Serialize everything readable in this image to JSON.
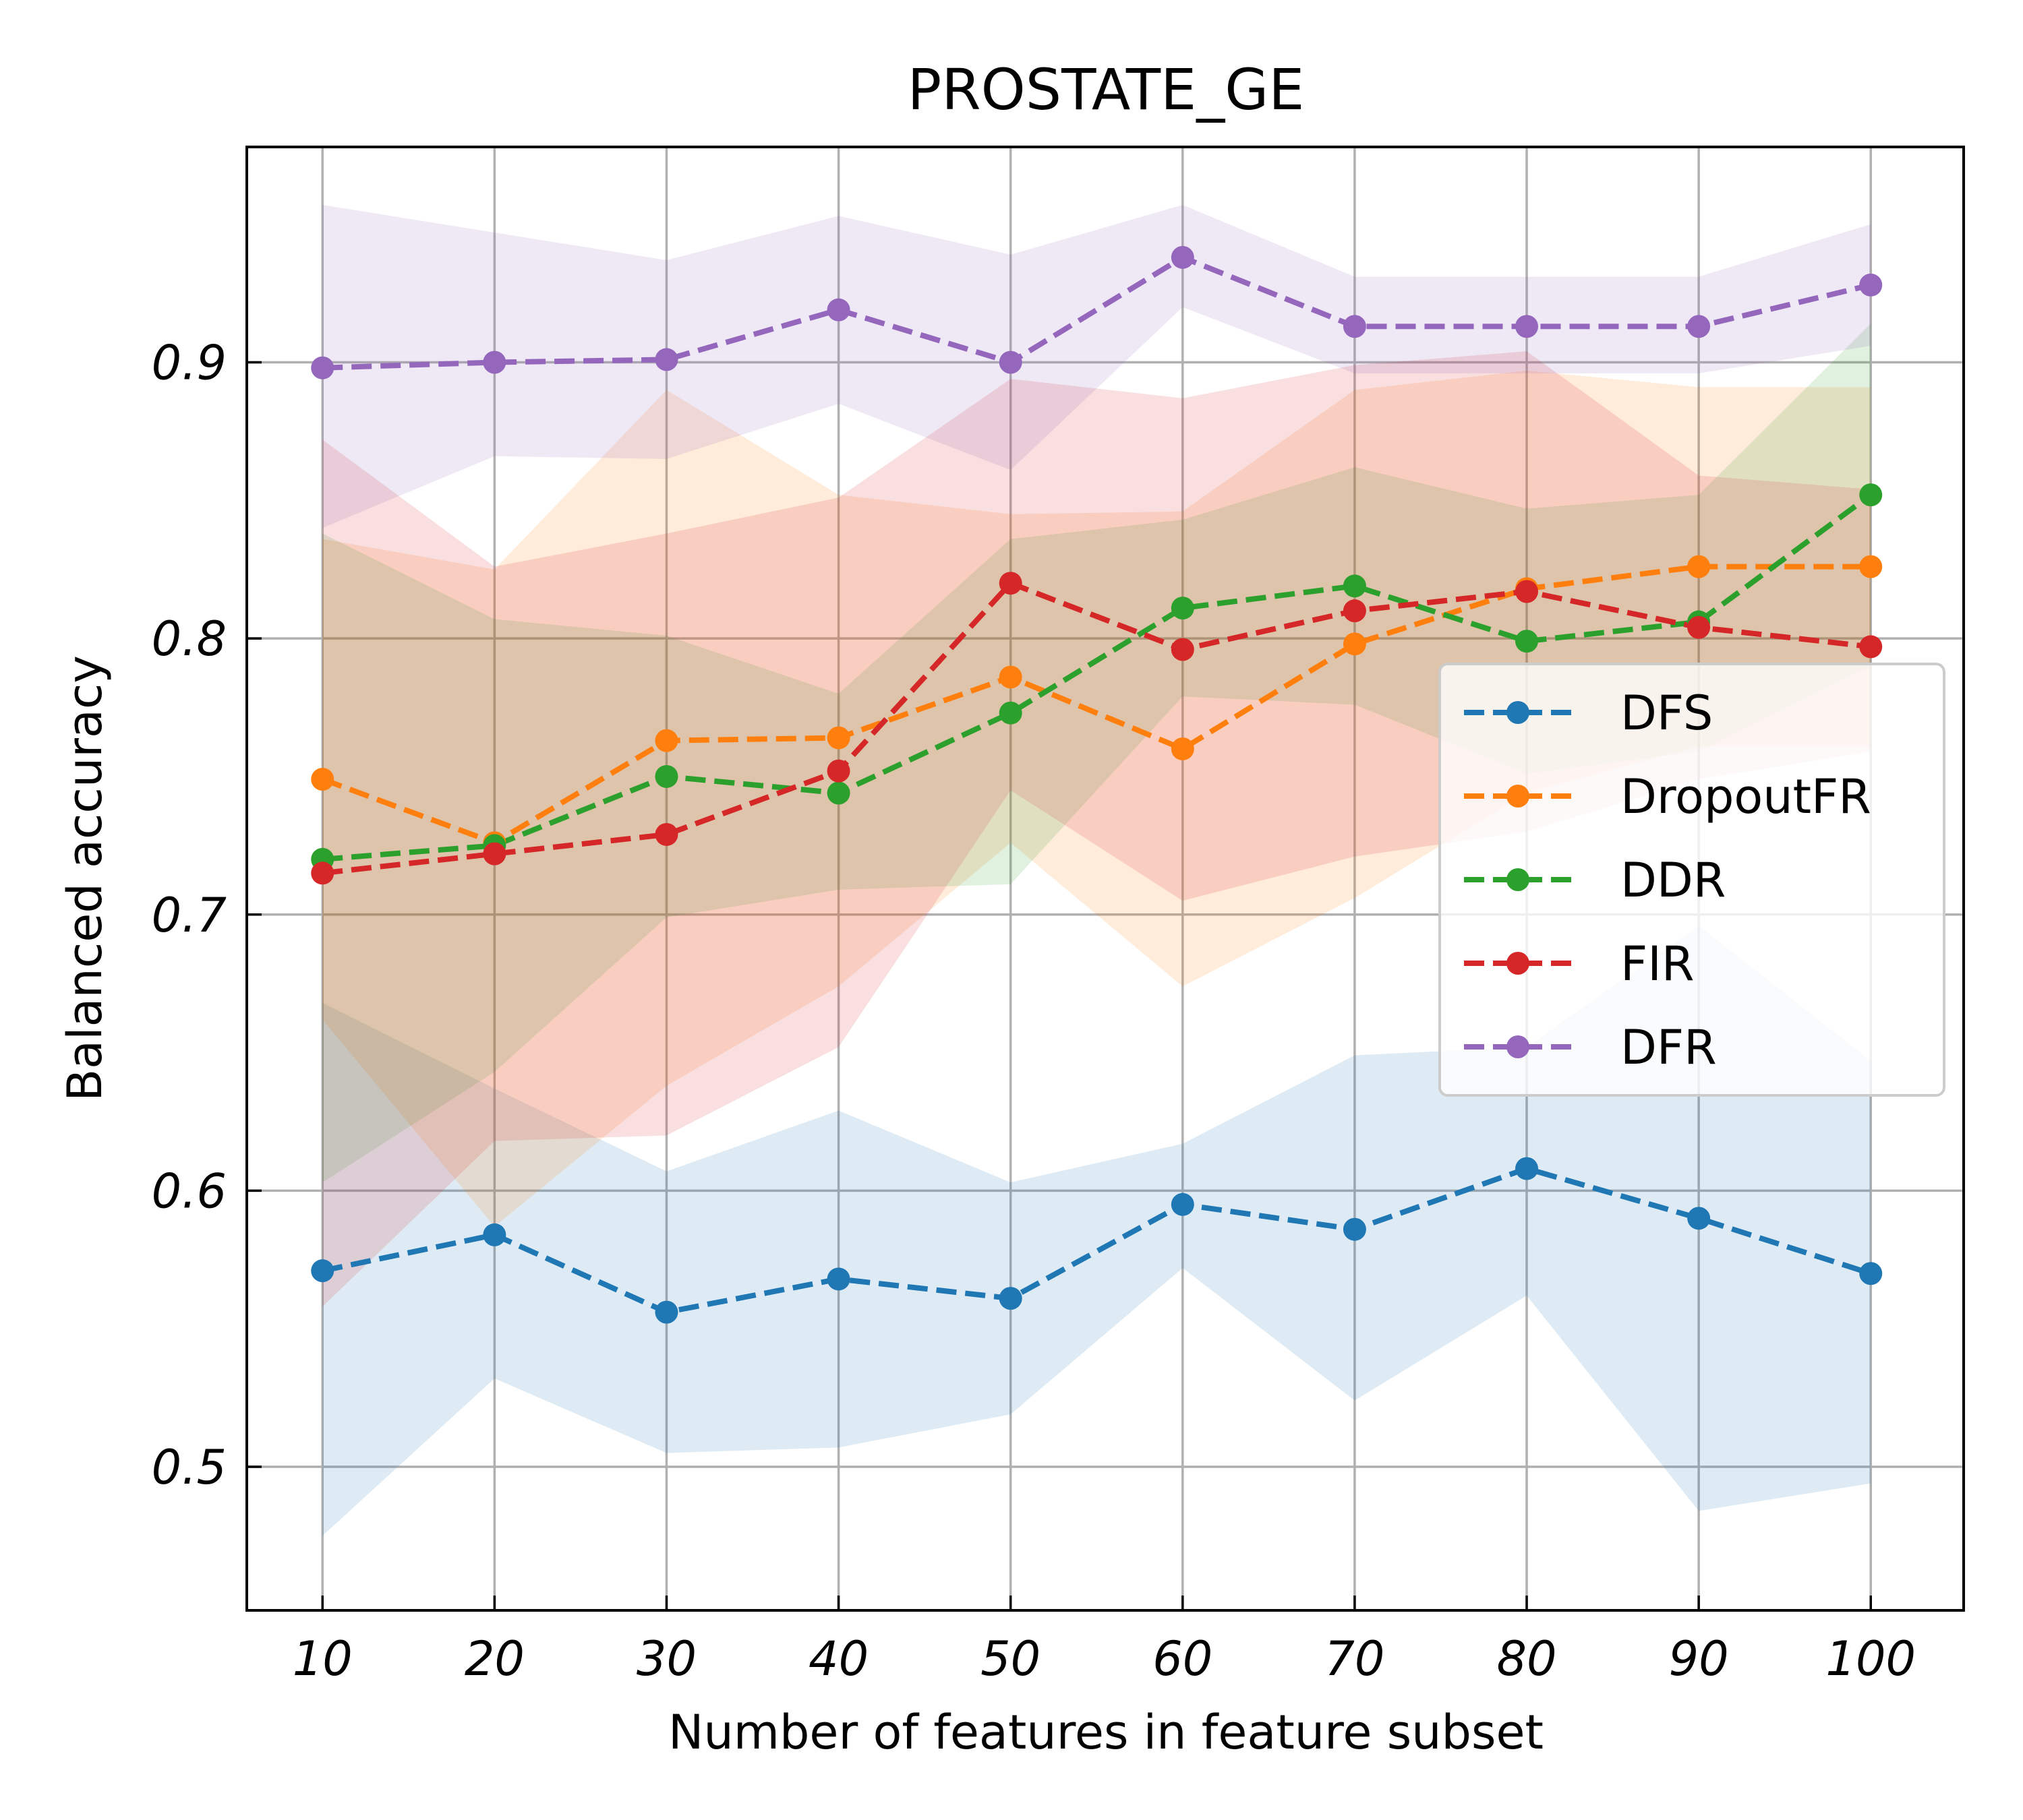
{
  "chart_data": {
    "type": "line",
    "title": "PROSTATE_GE",
    "xlabel": "Number of features in feature subset",
    "ylabel": "Balanced accuracy",
    "x": [
      10,
      20,
      30,
      40,
      50,
      60,
      70,
      80,
      90,
      100
    ],
    "x_ticks": [
      "10",
      "20",
      "30",
      "40",
      "50",
      "60",
      "70",
      "80",
      "90",
      "100"
    ],
    "y_ticks": [
      "0.5",
      "0.6",
      "0.7",
      "0.8",
      "0.9"
    ],
    "y_tick_values": [
      0.5,
      0.6,
      0.7,
      0.8,
      0.9
    ],
    "xlim": [
      5.6,
      105.4
    ],
    "ylim": [
      0.448,
      0.978
    ],
    "grid": true,
    "legend_position": "center-right",
    "series": [
      {
        "name": "DFS",
        "color": "#1f77b4",
        "values": [
          0.571,
          0.584,
          0.556,
          0.568,
          0.561,
          0.595,
          0.586,
          0.608,
          0.59,
          0.57
        ],
        "lower": [
          0.475,
          0.532,
          0.505,
          0.507,
          0.519,
          0.572,
          0.524,
          0.562,
          0.484,
          0.494
        ],
        "upper": [
          0.668,
          0.637,
          0.607,
          0.629,
          0.603,
          0.617,
          0.649,
          0.652,
          0.696,
          0.647
        ]
      },
      {
        "name": "DropoutFR",
        "color": "#ff7f0e",
        "values": [
          0.749,
          0.726,
          0.763,
          0.764,
          0.786,
          0.76,
          0.798,
          0.818,
          0.826,
          0.826
        ],
        "lower": [
          0.662,
          0.587,
          0.638,
          0.674,
          0.726,
          0.674,
          0.706,
          0.744,
          0.761,
          0.761
        ],
        "upper": [
          0.836,
          0.825,
          0.89,
          0.852,
          0.845,
          0.846,
          0.89,
          0.897,
          0.891,
          0.891
        ]
      },
      {
        "name": "DDR",
        "color": "#2ca02c",
        "values": [
          0.72,
          0.725,
          0.75,
          0.744,
          0.773,
          0.811,
          0.819,
          0.799,
          0.806,
          0.852
        ],
        "lower": [
          0.603,
          0.643,
          0.699,
          0.709,
          0.711,
          0.779,
          0.776,
          0.751,
          0.759,
          0.79
        ],
        "upper": [
          0.838,
          0.807,
          0.801,
          0.78,
          0.836,
          0.843,
          0.862,
          0.847,
          0.852,
          0.914
        ]
      },
      {
        "name": "FIR",
        "color": "#d62728",
        "values": [
          0.715,
          0.722,
          0.729,
          0.752,
          0.82,
          0.796,
          0.81,
          0.817,
          0.804,
          0.797
        ],
        "lower": [
          0.558,
          0.618,
          0.62,
          0.652,
          0.745,
          0.705,
          0.721,
          0.73,
          0.749,
          0.759
        ],
        "upper": [
          0.872,
          0.826,
          0.838,
          0.851,
          0.894,
          0.887,
          0.899,
          0.904,
          0.859,
          0.854
        ]
      },
      {
        "name": "DFR",
        "color": "#9467bd",
        "values": [
          0.898,
          0.9,
          0.901,
          0.919,
          0.9,
          0.938,
          0.913,
          0.913,
          0.913,
          0.928
        ],
        "lower": [
          0.84,
          0.866,
          0.865,
          0.885,
          0.861,
          0.92,
          0.896,
          0.896,
          0.896,
          0.906
        ],
        "upper": [
          0.957,
          0.947,
          0.937,
          0.953,
          0.939,
          0.957,
          0.931,
          0.931,
          0.931,
          0.95
        ]
      }
    ]
  }
}
